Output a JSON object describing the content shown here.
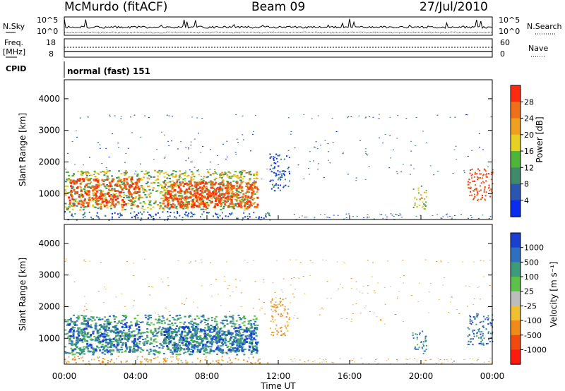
{
  "header": {
    "station": "McMurdo (fitACF)",
    "beam": "Beam 09",
    "date": "27/Jul/2010"
  },
  "noise_panel": {
    "left_label": "N.Sky",
    "right_label": "N.Search",
    "left_ticks": [
      "10^5",
      "10^0"
    ],
    "right_ticks": [
      "10^5",
      "10^0"
    ]
  },
  "freq_panel": {
    "left_label_line1": "Freq.",
    "left_label_line2": "[MHz]",
    "right_label": "Nave",
    "left_ticks": [
      "18",
      "8"
    ],
    "right_ticks": [
      "60",
      "0"
    ]
  },
  "cpid": {
    "label": "CPID",
    "value": "normal (fast) 151"
  },
  "x_axis": {
    "label": "Time UT",
    "ticks": [
      "00:00",
      "04:00",
      "08:00",
      "12:00",
      "16:00",
      "20:00",
      "00:00"
    ]
  },
  "chart_data": [
    {
      "type": "heatmap",
      "name": "power",
      "ylabel": "Slant Range [km]",
      "xlabel": "Time UT",
      "xlim": [
        0,
        24
      ],
      "ylim": [
        180,
        4600
      ],
      "yticks": [
        "1000",
        "2000",
        "3000",
        "4000"
      ],
      "colorbar": {
        "label": "Power [dB]",
        "ticks": [
          "4",
          "8",
          "12",
          "16",
          "20",
          "24",
          "28"
        ],
        "colors": [
          "#0a2cf0",
          "#2a55b0",
          "#3f8a6a",
          "#4fb43a",
          "#e6d020",
          "#f0a020",
          "#f07018",
          "#ff2a10"
        ]
      }
    },
    {
      "type": "heatmap",
      "name": "velocity",
      "ylabel": "Slant Range [km]",
      "xlabel": "Time UT",
      "xlim": [
        0,
        24
      ],
      "ylim": [
        180,
        4600
      ],
      "yticks": [
        "1000",
        "2000",
        "3000",
        "4000"
      ],
      "colorbar": {
        "label": "Velocity [m s⁻¹]",
        "ticks": [
          "1000",
          "500",
          "100",
          "25",
          "-25",
          "-100",
          "-500",
          "-1000"
        ],
        "colors": [
          "#1b3fd0",
          "#2f6fc0",
          "#3d9a7a",
          "#5cc04a",
          "#bdbdbd",
          "#f0c030",
          "#f08a18",
          "#f04a10",
          "#ff1a10"
        ]
      }
    }
  ]
}
